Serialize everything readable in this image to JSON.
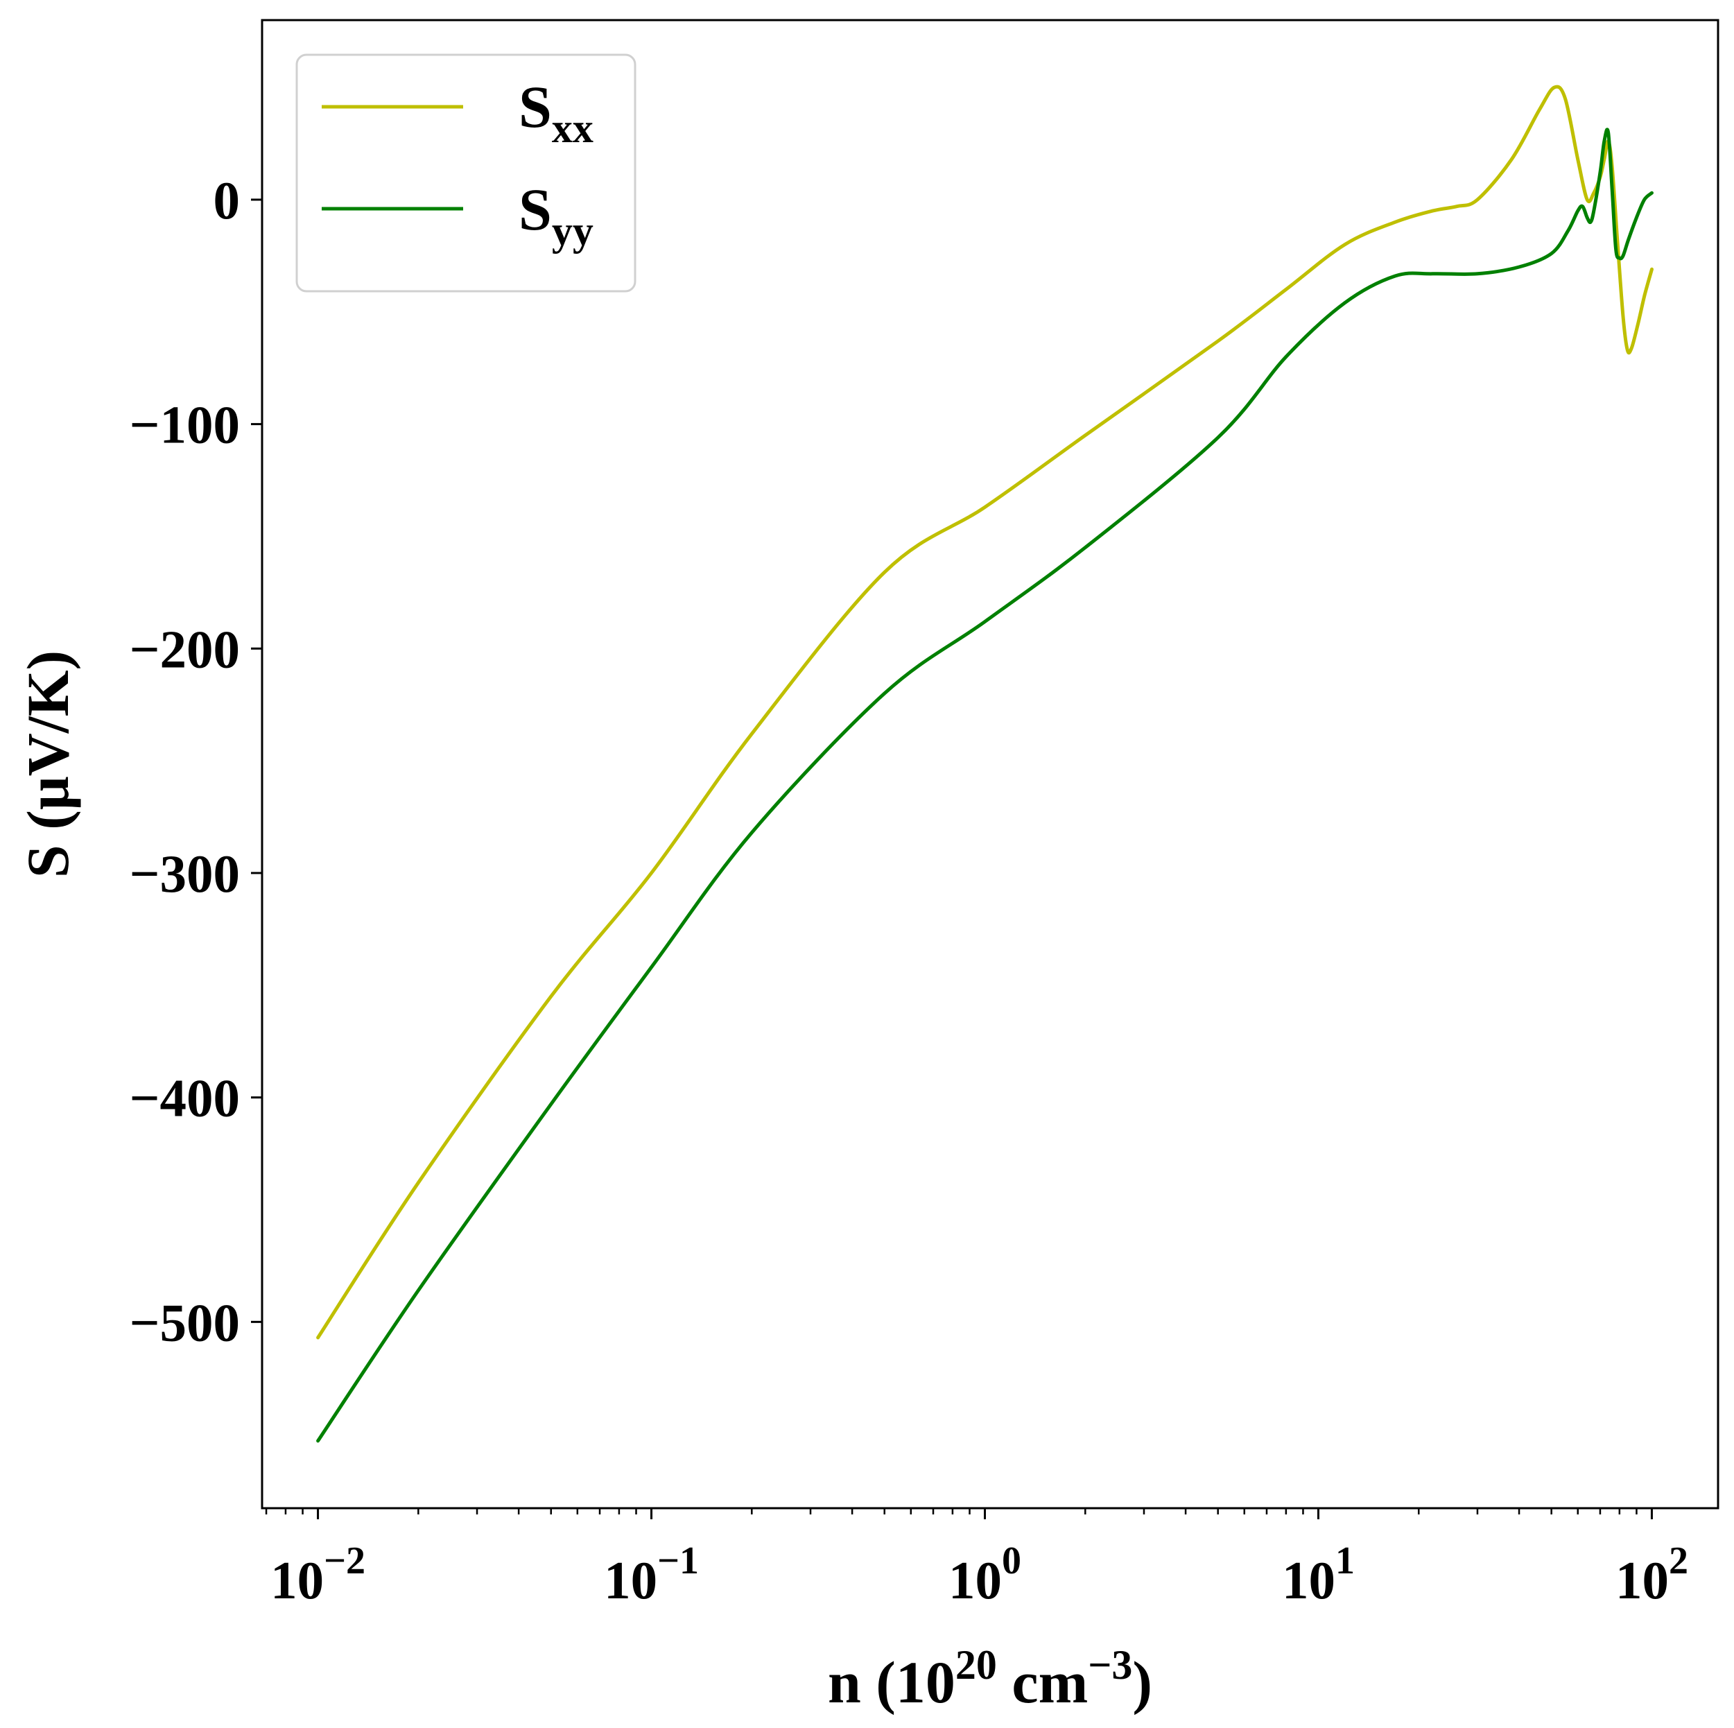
{
  "chart_data": {
    "type": "line",
    "xscale": "log",
    "xlim": [
      0.0068,
      158
    ],
    "ylim": [
      -583,
      80
    ],
    "xlabel": "n (10",
    "xlabel_exp1": "20",
    "xlabel_mid": " cm",
    "xlabel_exp2": "−3",
    "xlabel_end": ")",
    "ylabel": "S (μV/K)",
    "xticks": [
      {
        "value": 0.01,
        "base": "10",
        "exp": "−2"
      },
      {
        "value": 0.1,
        "base": "10",
        "exp": "−1"
      },
      {
        "value": 1,
        "base": "10",
        "exp": "0"
      },
      {
        "value": 10,
        "base": "10",
        "exp": "1"
      },
      {
        "value": 100,
        "base": "10",
        "exp": "2"
      }
    ],
    "yticks": [
      {
        "value": 0,
        "label": "0"
      },
      {
        "value": -100,
        "label": "−100"
      },
      {
        "value": -200,
        "label": "−200"
      },
      {
        "value": -300,
        "label": "−300"
      },
      {
        "value": -400,
        "label": "−400"
      },
      {
        "value": -500,
        "label": "−500"
      }
    ],
    "legend_position": "top-left",
    "series": [
      {
        "name": "S",
        "subscript": "xx",
        "color": "#bfbf00",
        "x": [
          0.01,
          0.02,
          0.05,
          0.1,
          0.2,
          0.5,
          1,
          2,
          5,
          8,
          12,
          17,
          22,
          26,
          30,
          38,
          46,
          51,
          55,
          60,
          64,
          67,
          70,
          72,
          74,
          76,
          79,
          82,
          84.5,
          87,
          91,
          95,
          100
        ],
        "y": [
          -507,
          -438,
          -355,
          -300,
          -238,
          -166,
          -137,
          -105,
          -63,
          -40,
          -20,
          -10,
          -5,
          -3,
          0,
          18,
          40,
          50,
          45,
          18,
          0,
          3,
          10,
          18,
          26,
          15,
          -20,
          -52,
          -67,
          -66,
          -55,
          -43,
          -31
        ]
      },
      {
        "name": "S",
        "subscript": "yy",
        "color": "#008000",
        "x": [
          0.01,
          0.02,
          0.05,
          0.1,
          0.2,
          0.5,
          1,
          2,
          5,
          8,
          12,
          17,
          22,
          30,
          40,
          50,
          56,
          60,
          62,
          64,
          65.5,
          67,
          70,
          72,
          74,
          76,
          78,
          80,
          82,
          85,
          90,
          95,
          100
        ],
        "y": [
          -553,
          -486,
          -403,
          -342,
          -282,
          -220,
          -188,
          -155,
          -106,
          -70,
          -46,
          -34,
          -33,
          -33,
          -30,
          -24,
          -14,
          -5,
          -3,
          -8,
          -10,
          -5,
          12,
          26,
          30,
          5,
          -22,
          -26,
          -25,
          -18,
          -8,
          0,
          3
        ]
      }
    ]
  }
}
